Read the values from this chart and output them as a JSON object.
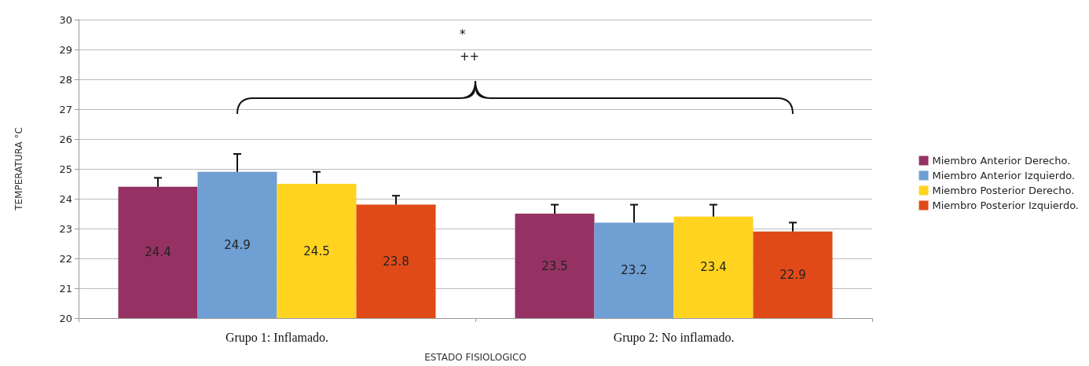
{
  "chart_data": {
    "type": "bar",
    "xlabel": "ESTADO FISIOLOGICO",
    "ylabel": "TEMPERATURA °C",
    "categories": [
      "Grupo 1: Inflamado.",
      "Grupo 2: No inflamado."
    ],
    "series": [
      {
        "name": "Miembro Anterior Derecho.",
        "color": "#963263",
        "values": [
          24.4,
          23.5
        ],
        "errors": [
          [
            24.4,
            24.7
          ],
          [
            23.5,
            23.8
          ]
        ]
      },
      {
        "name": "Miembro Anterior Izquierdo.",
        "color": "#6f9fd3",
        "values": [
          24.9,
          23.2
        ],
        "errors": [
          [
            24.9,
            25.5
          ],
          [
            23.2,
            23.8
          ]
        ]
      },
      {
        "name": "Miembro Posterior Derecho.",
        "color": "#ffd320",
        "values": [
          24.5,
          23.4
        ],
        "errors": [
          [
            24.5,
            24.9
          ],
          [
            23.4,
            23.8
          ]
        ]
      },
      {
        "name": "Miembro Posterior Izquierdo.",
        "color": "#e04a18",
        "values": [
          23.8,
          22.9
        ],
        "errors": [
          [
            23.8,
            24.1
          ],
          [
            22.9,
            23.2
          ]
        ]
      }
    ],
    "ylim": [
      20,
      30
    ],
    "yticks": [
      20,
      21,
      22,
      23,
      24,
      25,
      26,
      27,
      28,
      29,
      30
    ],
    "grid": "y",
    "legend": "right",
    "data_labels": true,
    "annotations": [
      "*",
      "++"
    ]
  }
}
